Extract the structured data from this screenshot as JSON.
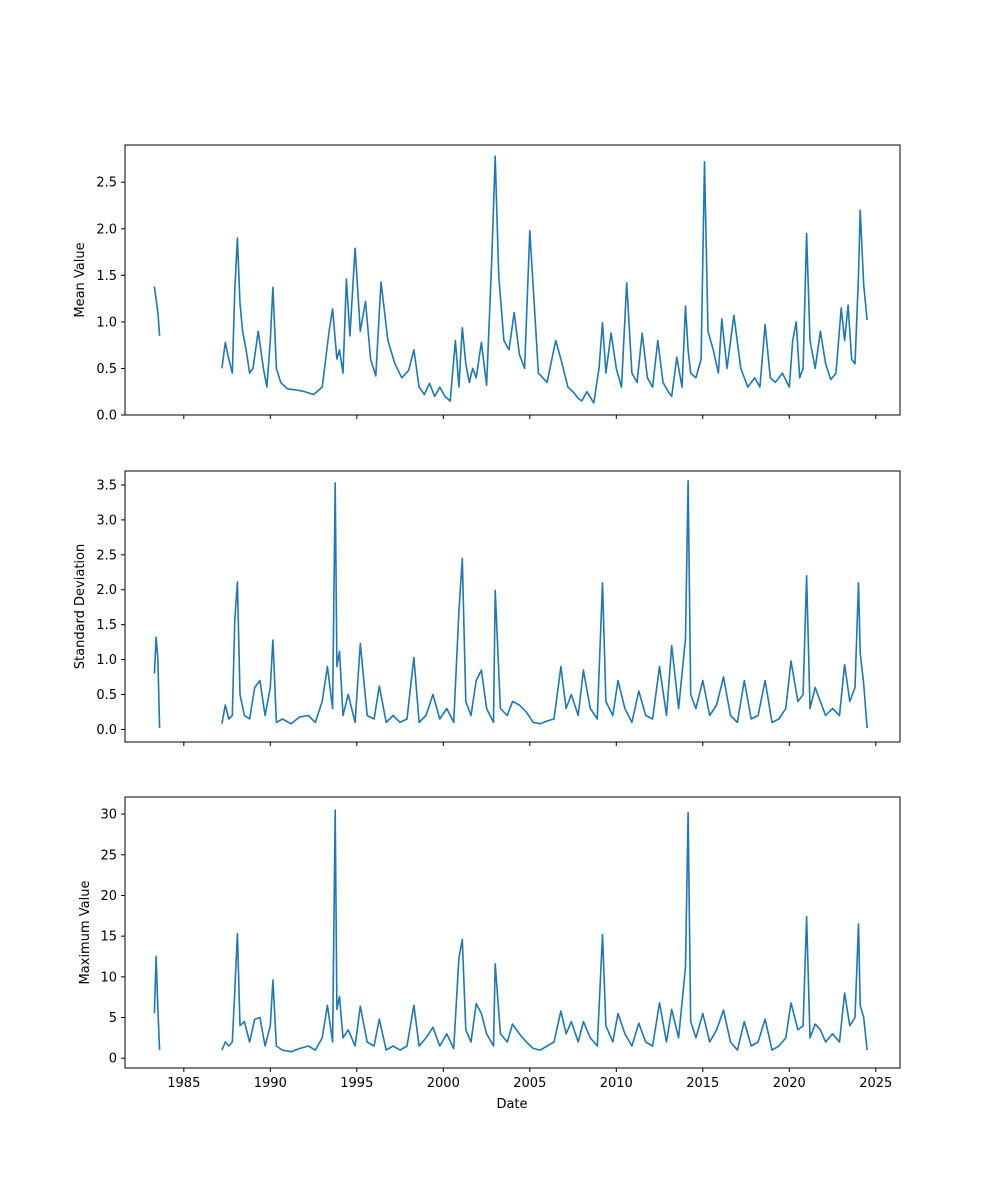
{
  "chart_data": {
    "type": "line",
    "shared_x": true,
    "xlabel": "Date",
    "x_ticks": [
      1985,
      1990,
      1995,
      2000,
      2005,
      2010,
      2015,
      2020,
      2025
    ],
    "xlim": [
      1981.6,
      2026.4
    ],
    "series_color": "#1f77b4",
    "grid": false,
    "subplots": [
      {
        "ylabel": "Mean Value",
        "ylim": [
          0.0,
          2.9
        ],
        "y_ticks": [
          "0.0",
          "0.5",
          "1.0",
          "1.5",
          "2.0",
          "2.5"
        ],
        "x": [
          1983.3,
          1983.5,
          1983.6,
          null,
          1987.2,
          1987.4,
          1987.6,
          1987.8,
          1987.95,
          1988.1,
          1988.25,
          1988.4,
          1988.6,
          1988.8,
          1989.0,
          1989.3,
          1989.6,
          1989.8,
          1990.0,
          1990.15,
          1990.35,
          1990.6,
          1991.0,
          1991.5,
          1992.0,
          1992.5,
          1993.0,
          1993.2,
          1993.4,
          1993.6,
          1993.85,
          1994.0,
          1994.2,
          1994.4,
          1994.6,
          1994.9,
          1995.2,
          1995.5,
          1995.8,
          1996.1,
          1996.4,
          1996.8,
          1997.2,
          1997.6,
          1998.0,
          1998.3,
          1998.6,
          1998.9,
          1999.2,
          1999.5,
          1999.8,
          2000.1,
          2000.4,
          2000.7,
          2000.9,
          2001.1,
          2001.3,
          2001.5,
          2001.7,
          2001.9,
          2002.2,
          2002.5,
          2002.8,
          2003.0,
          2003.2,
          2003.5,
          2003.8,
          2004.1,
          2004.4,
          2004.7,
          2005.0,
          2005.5,
          2006.0,
          2006.5,
          2006.8,
          2007.0,
          2007.2,
          2007.5,
          2007.8,
          2008.0,
          2008.3,
          2008.7,
          2009.0,
          2009.2,
          2009.4,
          2009.7,
          2010.0,
          2010.3,
          2010.6,
          2010.9,
          2011.2,
          2011.5,
          2011.8,
          2012.1,
          2012.4,
          2012.7,
          2013.0,
          2013.2,
          2013.5,
          2013.8,
          2014.0,
          2014.15,
          2014.3,
          2014.6,
          2014.9,
          2015.1,
          2015.3,
          2015.6,
          2015.9,
          2016.1,
          2016.4,
          2016.8,
          2017.2,
          2017.6,
          2018.0,
          2018.3,
          2018.6,
          2018.9,
          2019.2,
          2019.6,
          2020.0,
          2020.2,
          2020.4,
          2020.6,
          2020.8,
          2021.0,
          2021.2,
          2021.5,
          2021.8,
          2022.1,
          2022.4,
          2022.7,
          2023.0,
          2023.2,
          2023.4,
          2023.6,
          2023.8,
          2024.0,
          2024.1,
          2024.3,
          2024.5
        ],
        "y": [
          1.38,
          1.1,
          0.85,
          null,
          0.5,
          0.78,
          0.6,
          0.45,
          1.35,
          1.9,
          1.2,
          0.9,
          0.7,
          0.45,
          0.5,
          0.9,
          0.5,
          0.3,
          0.8,
          1.37,
          0.5,
          0.35,
          0.28,
          0.27,
          0.25,
          0.22,
          0.3,
          0.6,
          0.9,
          1.14,
          0.6,
          0.7,
          0.45,
          1.46,
          0.85,
          1.79,
          0.9,
          1.22,
          0.6,
          0.42,
          1.43,
          0.8,
          0.55,
          0.4,
          0.48,
          0.7,
          0.3,
          0.22,
          0.34,
          0.2,
          0.3,
          0.2,
          0.15,
          0.8,
          0.3,
          0.94,
          0.55,
          0.35,
          0.5,
          0.4,
          0.78,
          0.32,
          1.65,
          2.78,
          1.5,
          0.8,
          0.7,
          1.1,
          0.65,
          0.5,
          1.98,
          0.45,
          0.35,
          0.8,
          0.6,
          0.45,
          0.3,
          0.25,
          0.18,
          0.15,
          0.25,
          0.13,
          0.5,
          0.99,
          0.45,
          0.88,
          0.5,
          0.3,
          1.42,
          0.45,
          0.35,
          0.88,
          0.4,
          0.3,
          0.8,
          0.35,
          0.25,
          0.2,
          0.62,
          0.3,
          1.17,
          0.7,
          0.45,
          0.4,
          0.6,
          2.72,
          0.9,
          0.7,
          0.45,
          1.03,
          0.5,
          1.07,
          0.5,
          0.3,
          0.4,
          0.3,
          0.97,
          0.4,
          0.35,
          0.45,
          0.3,
          0.8,
          1.0,
          0.4,
          0.5,
          1.95,
          0.8,
          0.5,
          0.9,
          0.55,
          0.38,
          0.45,
          1.15,
          0.8,
          1.18,
          0.6,
          0.55,
          1.5,
          2.2,
          1.4,
          1.02
        ]
      },
      {
        "ylabel": "Standard Deviation",
        "ylim": [
          -0.18,
          3.7
        ],
        "y_ticks": [
          "0.0",
          "0.5",
          "1.0",
          "1.5",
          "2.0",
          "2.5",
          "3.0",
          "3.5"
        ],
        "x": [
          1983.3,
          1983.4,
          1983.5,
          1983.6,
          null,
          1987.2,
          1987.4,
          1987.6,
          1987.8,
          1987.95,
          1988.1,
          1988.25,
          1988.5,
          1988.8,
          1989.1,
          1989.4,
          1989.7,
          1990.0,
          1990.15,
          1990.35,
          1990.7,
          1991.2,
          1991.7,
          1992.2,
          1992.6,
          1993.0,
          1993.3,
          1993.6,
          1993.75,
          1993.85,
          1994.0,
          1994.2,
          1994.5,
          1994.9,
          1995.2,
          1995.6,
          1996.0,
          1996.3,
          1996.7,
          1997.1,
          1997.5,
          1997.9,
          1998.3,
          1998.6,
          1999.0,
          1999.4,
          1999.8,
          2000.2,
          2000.6,
          2000.9,
          2001.1,
          2001.3,
          2001.6,
          2001.9,
          2002.2,
          2002.5,
          2002.9,
          2003.0,
          2003.3,
          2003.7,
          2004.0,
          2004.4,
          2004.8,
          2005.2,
          2005.6,
          2006.0,
          2006.4,
          2006.8,
          2007.1,
          2007.4,
          2007.8,
          2008.1,
          2008.5,
          2008.9,
          2009.2,
          2009.4,
          2009.8,
          2010.1,
          2010.5,
          2010.9,
          2011.3,
          2011.7,
          2012.1,
          2012.5,
          2012.9,
          2013.2,
          2013.6,
          2014.0,
          2014.15,
          2014.3,
          2014.6,
          2015.0,
          2015.4,
          2015.8,
          2016.2,
          2016.6,
          2017.0,
          2017.4,
          2017.8,
          2018.2,
          2018.6,
          2019.0,
          2019.4,
          2019.8,
          2020.1,
          2020.5,
          2020.8,
          2021.0,
          2021.2,
          2021.5,
          2021.8,
          2022.1,
          2022.5,
          2022.9,
          2023.2,
          2023.5,
          2023.8,
          2024.0,
          2024.1,
          2024.3,
          2024.5
        ],
        "y": [
          0.8,
          1.32,
          1.0,
          0.02,
          null,
          0.08,
          0.35,
          0.15,
          0.2,
          1.57,
          2.11,
          0.5,
          0.2,
          0.15,
          0.6,
          0.7,
          0.2,
          0.6,
          1.28,
          0.1,
          0.15,
          0.08,
          0.18,
          0.2,
          0.1,
          0.4,
          0.9,
          0.3,
          3.53,
          0.9,
          1.12,
          0.2,
          0.5,
          0.1,
          1.23,
          0.2,
          0.15,
          0.62,
          0.1,
          0.2,
          0.1,
          0.15,
          1.03,
          0.1,
          0.2,
          0.5,
          0.15,
          0.3,
          0.1,
          1.68,
          2.45,
          0.4,
          0.2,
          0.7,
          0.85,
          0.3,
          0.1,
          1.99,
          0.3,
          0.2,
          0.4,
          0.35,
          0.25,
          0.1,
          0.08,
          0.12,
          0.15,
          0.9,
          0.3,
          0.5,
          0.2,
          0.85,
          0.3,
          0.15,
          2.1,
          0.4,
          0.2,
          0.7,
          0.3,
          0.1,
          0.55,
          0.2,
          0.15,
          0.9,
          0.2,
          1.2,
          0.3,
          1.3,
          3.56,
          0.5,
          0.3,
          0.7,
          0.2,
          0.35,
          0.75,
          0.2,
          0.1,
          0.7,
          0.15,
          0.2,
          0.7,
          0.1,
          0.15,
          0.3,
          0.98,
          0.4,
          0.5,
          2.2,
          0.3,
          0.6,
          0.4,
          0.2,
          0.3,
          0.2,
          0.93,
          0.4,
          0.6,
          2.1,
          1.1,
          0.65,
          0.02
        ]
      },
      {
        "ylabel": "Maximum Value",
        "ylim": [
          -1.2,
          32.1
        ],
        "y_ticks": [
          "0",
          "5",
          "10",
          "15",
          "20",
          "25",
          "30"
        ],
        "x": [
          1983.3,
          1983.4,
          1983.5,
          1983.6,
          null,
          1987.2,
          1987.4,
          1987.6,
          1987.8,
          1987.95,
          1988.1,
          1988.25,
          1988.5,
          1988.8,
          1989.1,
          1989.4,
          1989.7,
          1990.0,
          1990.15,
          1990.35,
          1990.7,
          1991.2,
          1991.7,
          1992.2,
          1992.6,
          1993.0,
          1993.3,
          1993.6,
          1993.75,
          1993.85,
          1994.0,
          1994.2,
          1994.5,
          1994.9,
          1995.2,
          1995.6,
          1996.0,
          1996.3,
          1996.7,
          1997.1,
          1997.5,
          1997.9,
          1998.3,
          1998.6,
          1999.0,
          1999.4,
          1999.8,
          2000.2,
          2000.6,
          2000.9,
          2001.1,
          2001.3,
          2001.6,
          2001.9,
          2002.2,
          2002.5,
          2002.9,
          2003.0,
          2003.3,
          2003.7,
          2004.0,
          2004.4,
          2004.8,
          2005.2,
          2005.6,
          2006.0,
          2006.4,
          2006.8,
          2007.1,
          2007.4,
          2007.8,
          2008.1,
          2008.5,
          2008.9,
          2009.2,
          2009.4,
          2009.8,
          2010.1,
          2010.5,
          2010.9,
          2011.3,
          2011.7,
          2012.1,
          2012.5,
          2012.9,
          2013.2,
          2013.6,
          2014.0,
          2014.15,
          2014.3,
          2014.6,
          2015.0,
          2015.4,
          2015.8,
          2016.2,
          2016.6,
          2017.0,
          2017.4,
          2017.8,
          2018.2,
          2018.6,
          2019.0,
          2019.4,
          2019.8,
          2020.1,
          2020.5,
          2020.8,
          2021.0,
          2021.2,
          2021.5,
          2021.8,
          2022.1,
          2022.5,
          2022.9,
          2023.2,
          2023.5,
          2023.8,
          2024.0,
          2024.1,
          2024.3,
          2024.5
        ],
        "y": [
          5.5,
          12.5,
          6.0,
          1.0,
          null,
          1.0,
          2.0,
          1.5,
          2.0,
          8.3,
          15.3,
          4.0,
          4.5,
          2.0,
          4.8,
          5.0,
          1.5,
          4.0,
          9.6,
          1.5,
          1.0,
          0.8,
          1.2,
          1.5,
          1.0,
          2.5,
          6.5,
          2.0,
          30.5,
          6.0,
          7.6,
          2.5,
          3.5,
          1.5,
          6.4,
          2.0,
          1.5,
          4.8,
          1.0,
          1.5,
          1.0,
          1.5,
          6.5,
          1.5,
          2.5,
          3.8,
          1.5,
          3.0,
          1.2,
          12.3,
          14.6,
          3.5,
          2.0,
          6.7,
          5.5,
          3.0,
          1.5,
          11.6,
          3.0,
          2.0,
          4.2,
          3.0,
          2.0,
          1.2,
          1.0,
          1.5,
          2.0,
          5.8,
          3.0,
          4.5,
          2.0,
          4.5,
          2.5,
          1.5,
          15.2,
          4.0,
          2.0,
          5.5,
          3.0,
          1.5,
          4.3,
          2.0,
          1.5,
          6.8,
          2.0,
          6.0,
          2.5,
          11.2,
          30.2,
          4.5,
          2.5,
          5.5,
          2.0,
          3.5,
          5.9,
          2.0,
          1.0,
          4.5,
          1.5,
          2.0,
          4.8,
          1.0,
          1.5,
          2.5,
          6.8,
          3.5,
          4.0,
          17.4,
          2.5,
          4.2,
          3.5,
          2.0,
          3.0,
          2.0,
          8.0,
          4.0,
          5.0,
          16.5,
          6.5,
          5.0,
          1.0
        ]
      }
    ]
  }
}
